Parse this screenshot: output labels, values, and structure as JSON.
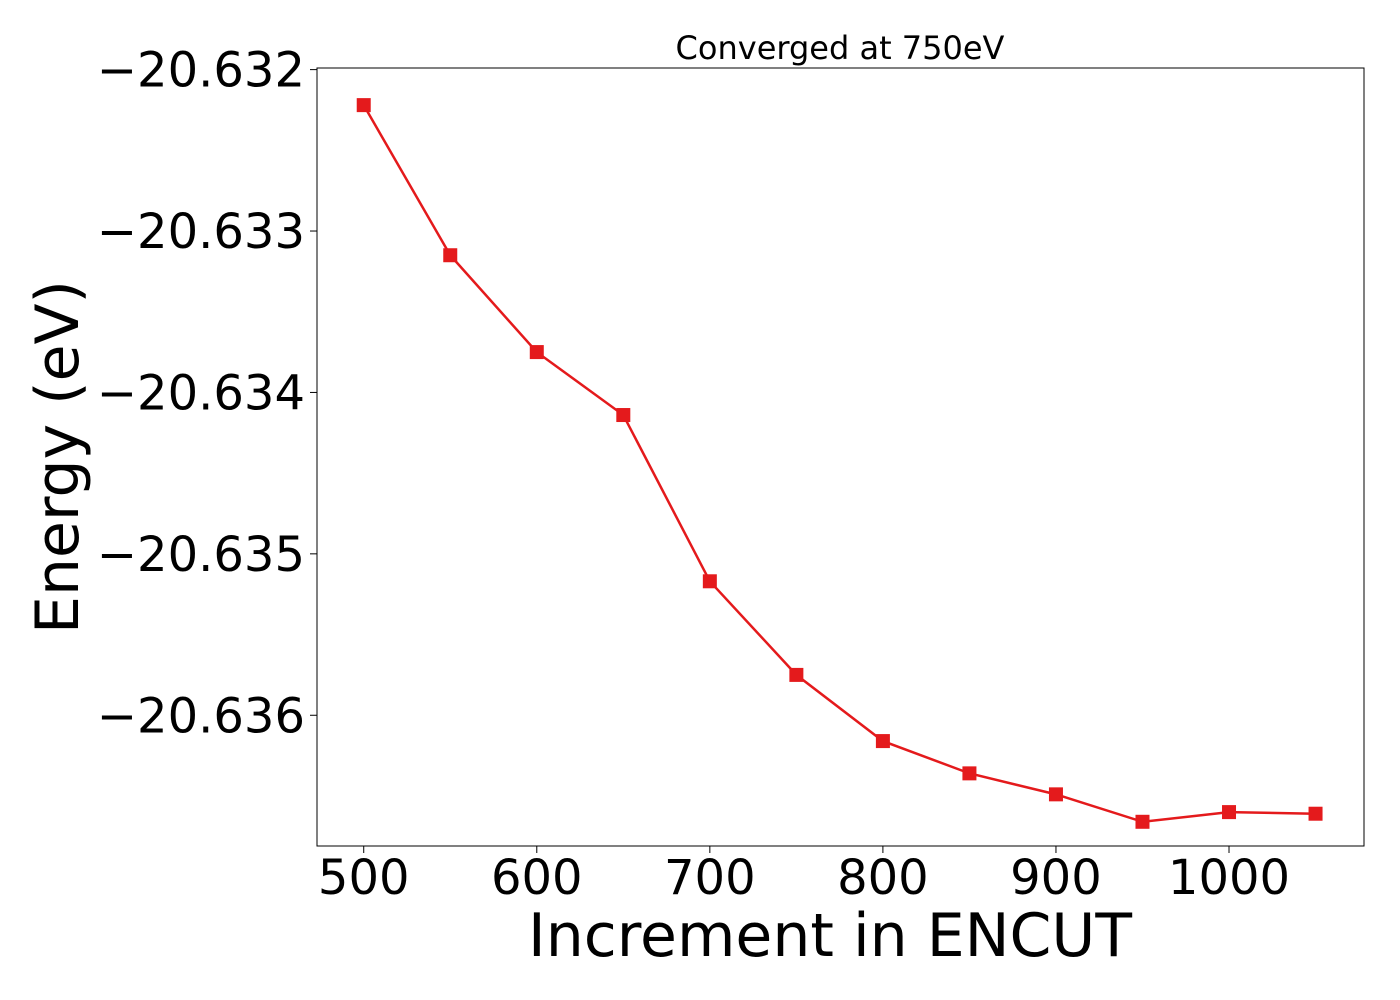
{
  "chart_data": {
    "type": "line",
    "title": "Converged at 750eV",
    "xlabel": "Increment in ENCUT",
    "ylabel": "Energy (eV)",
    "x": [
      500,
      550,
      600,
      650,
      700,
      750,
      800,
      850,
      900,
      950,
      1000,
      1050
    ],
    "series": [
      {
        "values": [
          -20.63222,
          -20.63315,
          -20.63375,
          -20.63414,
          -20.63517,
          -20.63575,
          -20.63616,
          -20.63636,
          -20.63649,
          -20.63666,
          -20.6366,
          -20.63661
        ]
      }
    ],
    "xlim": [
      473,
      1078
    ],
    "ylim": [
      -20.63681,
      -20.63199
    ],
    "xticks": [
      500,
      600,
      700,
      800,
      900,
      1000
    ],
    "xtick_labels": [
      "500",
      "600",
      "700",
      "800",
      "900",
      "1000"
    ],
    "yticks": [
      -20.632,
      -20.633,
      -20.634,
      -20.635,
      -20.636
    ],
    "ytick_labels": [
      "−20.632",
      "−20.633",
      "−20.634",
      "−20.635",
      "−20.636"
    ],
    "grid": false,
    "legend": "none",
    "marker": "square",
    "color": "#e41a1c"
  }
}
